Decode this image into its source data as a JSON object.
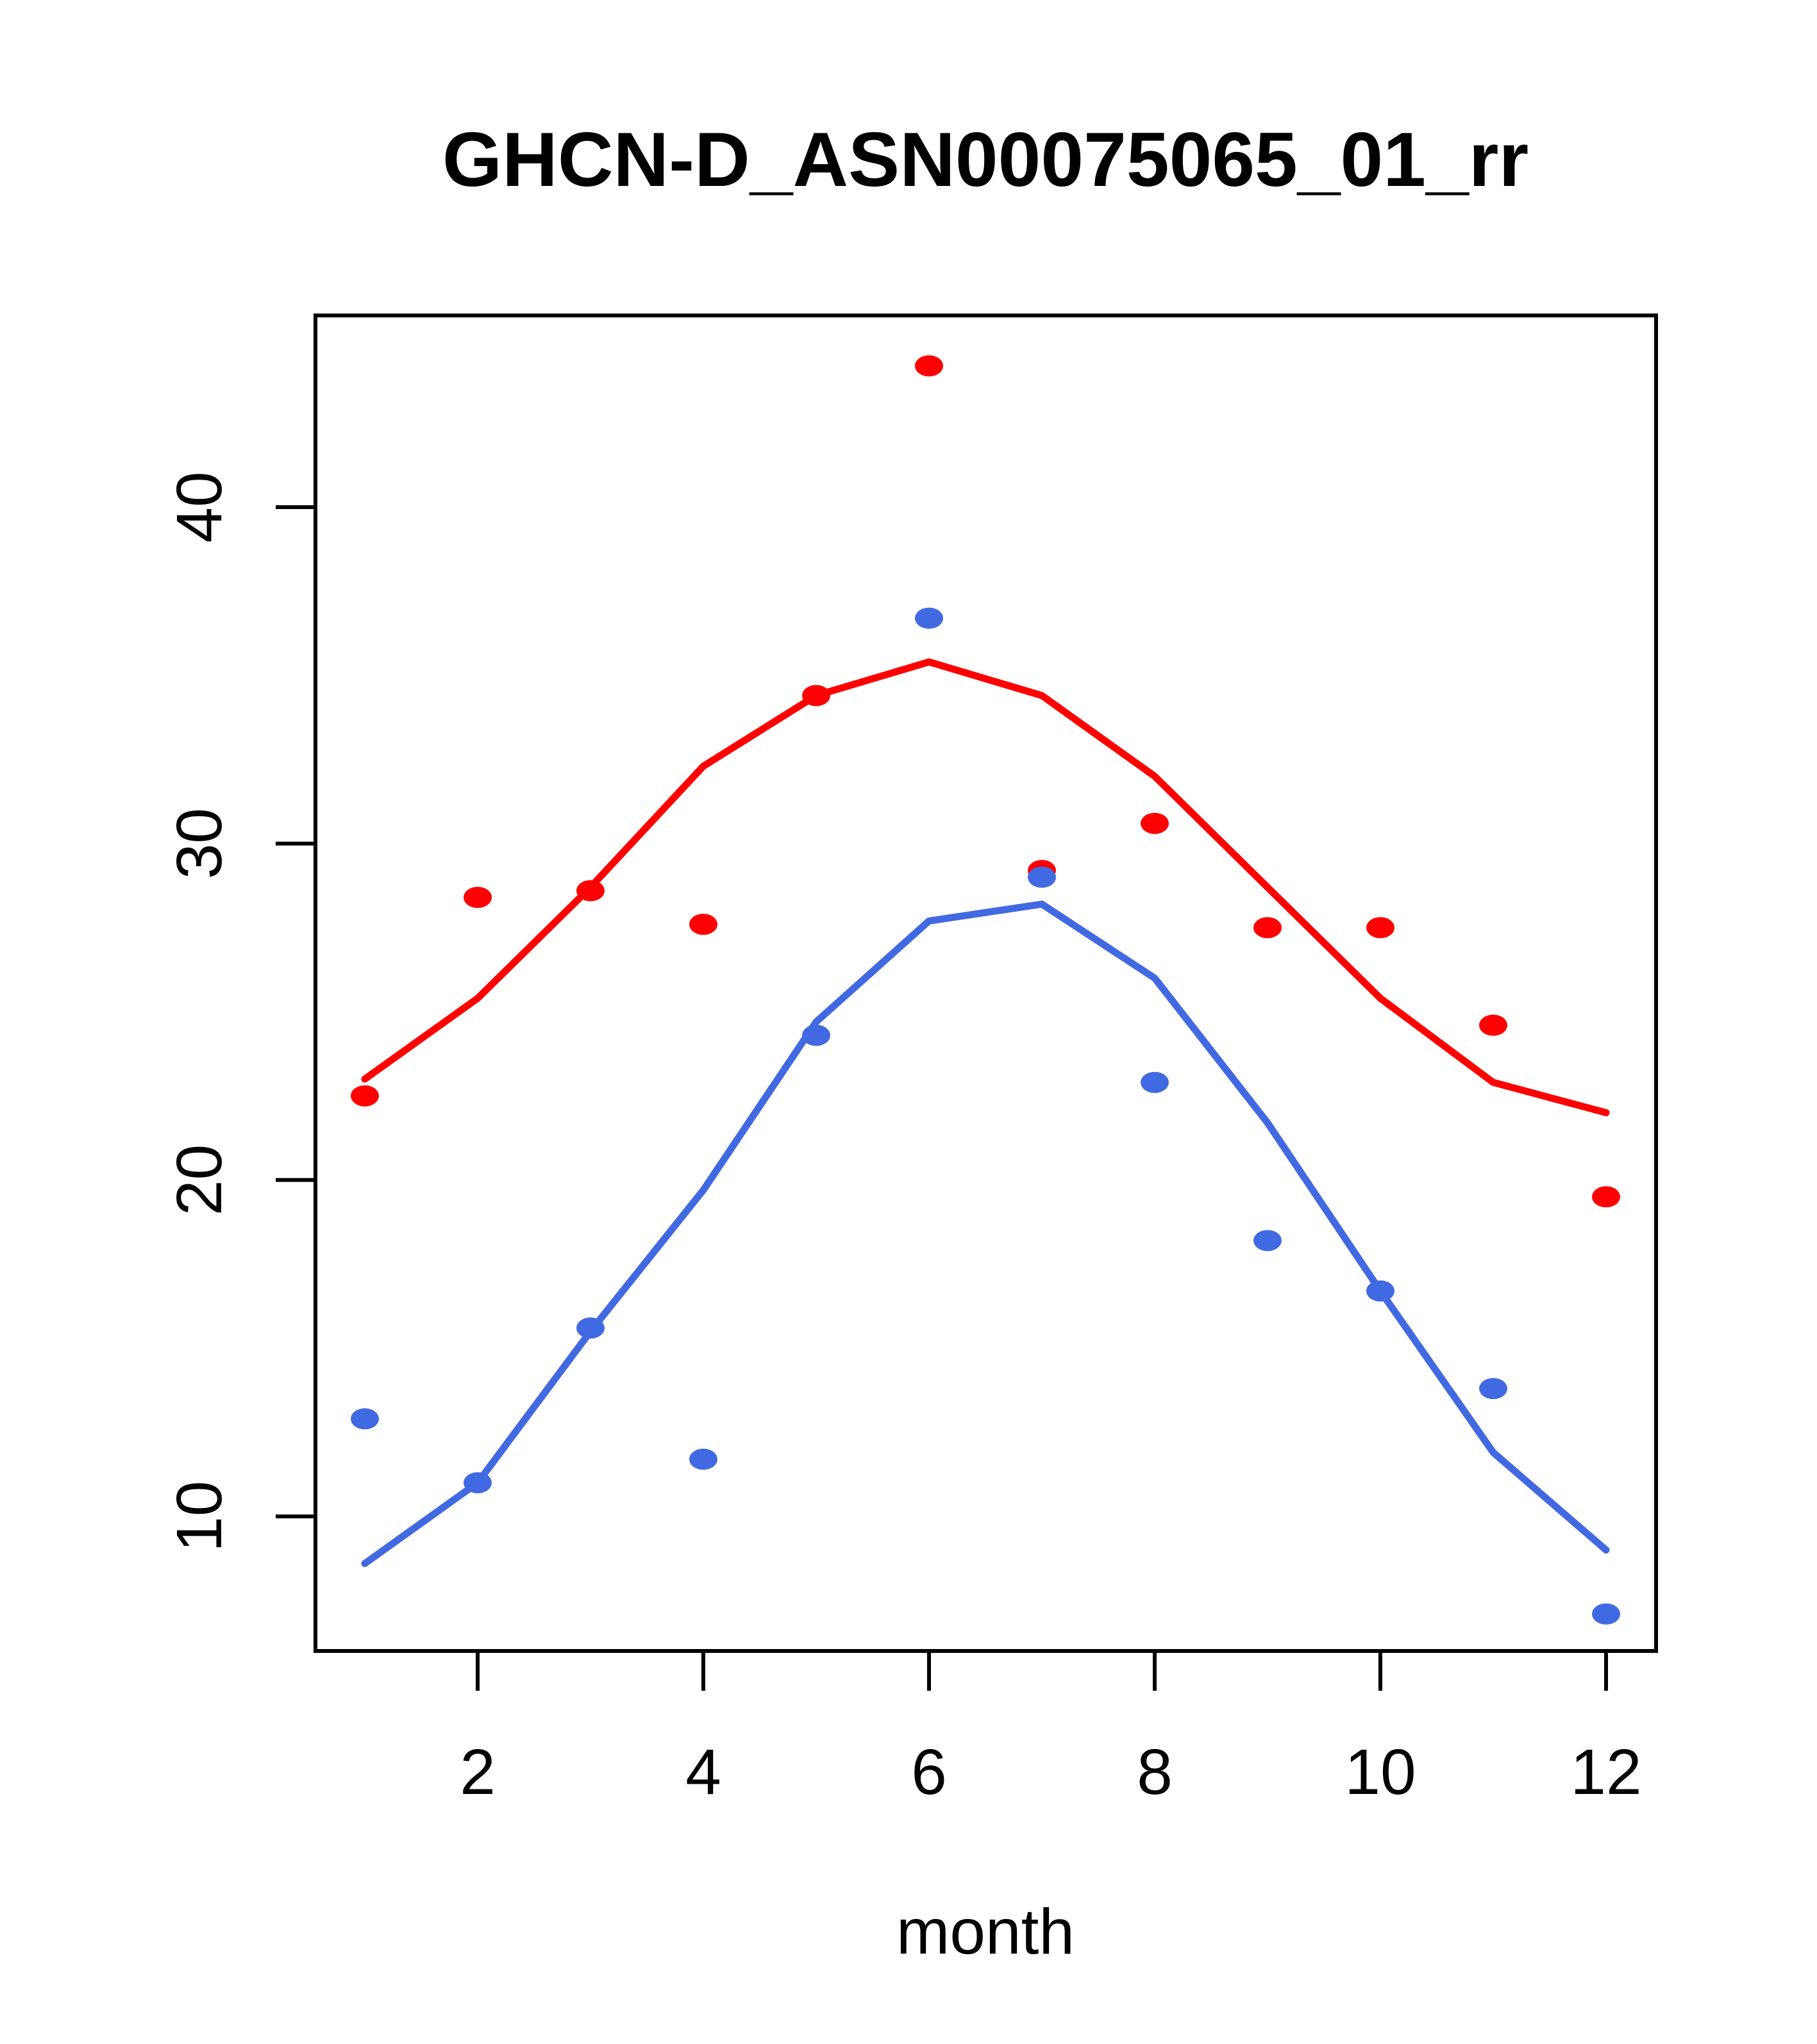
{
  "title": "GHCN-D_ASN00075065_01_rr",
  "chart_data": {
    "type": "scatter",
    "title": "GHCN-D_ASN00075065_01_rr",
    "xlabel": "month",
    "ylabel": "",
    "x": [
      1,
      2,
      3,
      4,
      5,
      6,
      7,
      8,
      9,
      10,
      11,
      12
    ],
    "x_tick_labels": [
      2,
      4,
      6,
      8,
      10,
      12
    ],
    "y_tick_labels": [
      10,
      20,
      30,
      40
    ],
    "xlim": [
      0.56,
      12.44
    ],
    "ylim": [
      6.0,
      45.7
    ],
    "grid": false,
    "legend": "none",
    "frame_color": "#000000",
    "background_color": "#ffffff",
    "series": [
      {
        "name": "red-monthly-points",
        "kind": "scatter",
        "color": "#FF0000",
        "values": [
          22.5,
          28.4,
          28.6,
          27.6,
          34.4,
          44.2,
          29.2,
          30.6,
          27.5,
          27.5,
          24.6,
          19.5
        ]
      },
      {
        "name": "red-smooth-line",
        "kind": "line",
        "color": "#FF0000",
        "values": [
          23.0,
          25.4,
          28.7,
          32.3,
          34.4,
          35.4,
          34.4,
          32.0,
          28.7,
          25.4,
          22.9,
          22.0
        ]
      },
      {
        "name": "blue-monthly-points",
        "kind": "scatter",
        "color": "#4169E1",
        "values": [
          12.9,
          11.0,
          15.6,
          11.7,
          24.3,
          36.7,
          29.0,
          22.9,
          18.2,
          16.7,
          13.8,
          7.1
        ]
      },
      {
        "name": "blue-smooth-line",
        "kind": "line",
        "color": "#4169E1",
        "values": [
          8.6,
          11.0,
          15.5,
          19.7,
          24.7,
          27.7,
          28.2,
          26.0,
          21.7,
          16.7,
          11.9,
          9.0
        ]
      }
    ]
  }
}
